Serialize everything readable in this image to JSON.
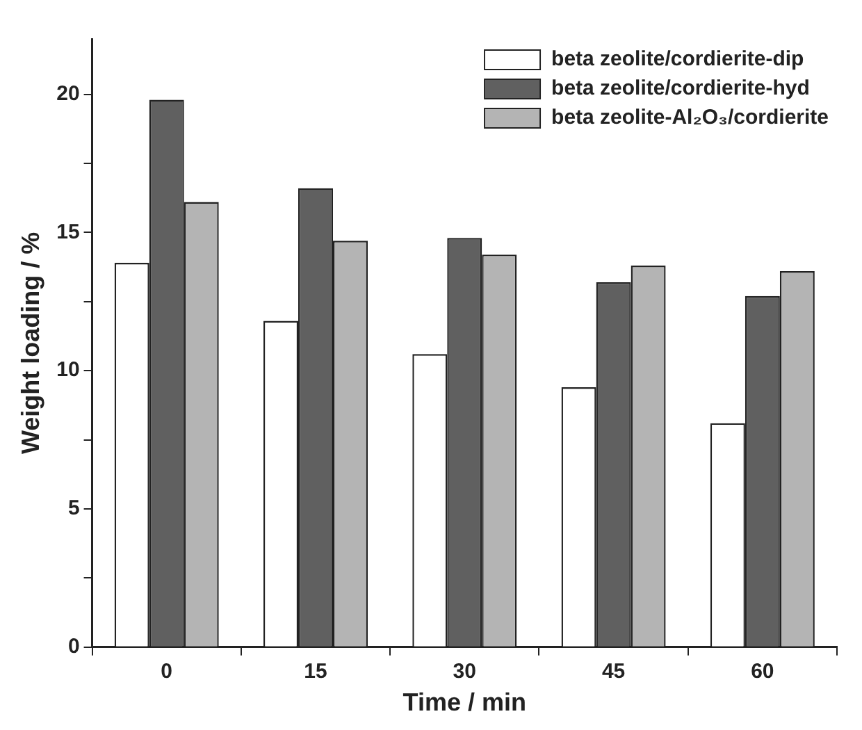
{
  "chart_data": {
    "type": "bar",
    "xlabel": "Time / min",
    "ylabel": "Weight loading / %",
    "categories": [
      "0",
      "15",
      "30",
      "45",
      "60"
    ],
    "series": [
      {
        "name": "beta zeolite/cordierite-dip",
        "color": "#ffffff",
        "values": [
          13.9,
          11.8,
          10.6,
          9.4,
          8.1
        ]
      },
      {
        "name": "beta zeolite/cordierite-hyd",
        "color": "#606060",
        "values": [
          19.8,
          16.6,
          14.8,
          13.2,
          12.7
        ]
      },
      {
        "name": "beta zeolite-Al₂O₃/cordierite",
        "color": "#b4b4b4",
        "values": [
          16.1,
          14.7,
          14.2,
          13.8,
          13.6
        ]
      }
    ],
    "ylim": [
      0,
      22
    ],
    "yticks": [
      0,
      {
        "value": 2.5,
        "label": null
      },
      5,
      {
        "value": 7.5,
        "label": null
      },
      10,
      {
        "value": 12.5,
        "label": null
      },
      15,
      {
        "value": 17.5,
        "label": null
      },
      20
    ],
    "grid": false,
    "legend": "top right"
  }
}
